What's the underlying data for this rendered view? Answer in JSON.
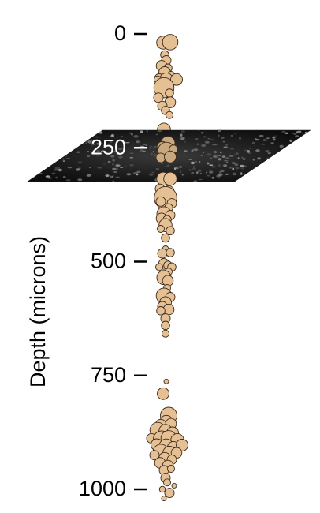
{
  "chart_data": {
    "type": "scatter",
    "title": "",
    "xlabel": "",
    "ylabel": "Depth (microns)",
    "y_axis": {
      "direction": "down",
      "ylim": [
        0,
        1000
      ],
      "ticks": [
        0,
        250,
        500,
        750,
        1000
      ],
      "tick_labels": [
        "0",
        "250",
        "500",
        "750",
        "1000"
      ]
    },
    "imaging_plane": {
      "depth": 250,
      "description": "two-photon imaging field, grayscale"
    },
    "marker": {
      "fill": "#e5c094",
      "edge": "#3a2a1a"
    },
    "points": [
      {
        "x": -0.15,
        "depth": 19,
        "size": 1.1
      },
      {
        "x": 0.3,
        "depth": 18,
        "size": 1.3
      },
      {
        "x": -0.05,
        "depth": 46,
        "size": 0.7
      },
      {
        "x": 0.05,
        "depth": 58,
        "size": 0.8
      },
      {
        "x": -0.25,
        "depth": 70,
        "size": 0.9
      },
      {
        "x": 0.15,
        "depth": 75,
        "size": 0.7
      },
      {
        "x": -0.05,
        "depth": 85,
        "size": 1.0
      },
      {
        "x": 0.35,
        "depth": 90,
        "size": 0.6
      },
      {
        "x": -0.4,
        "depth": 98,
        "size": 0.8
      },
      {
        "x": 0.05,
        "depth": 100,
        "size": 1.1
      },
      {
        "x": -0.5,
        "depth": 100,
        "size": 0.6
      },
      {
        "x": 0.7,
        "depth": 100,
        "size": 1.0
      },
      {
        "x": -0.1,
        "depth": 118,
        "size": 1.7
      },
      {
        "x": 0.25,
        "depth": 130,
        "size": 0.7
      },
      {
        "x": -0.45,
        "depth": 140,
        "size": 0.8
      },
      {
        "x": 0.3,
        "depth": 150,
        "size": 0.9
      },
      {
        "x": -0.2,
        "depth": 158,
        "size": 0.8
      },
      {
        "x": 0.0,
        "depth": 168,
        "size": 0.7
      },
      {
        "x": 0.25,
        "depth": 178,
        "size": 0.6
      },
      {
        "x": -0.1,
        "depth": 210,
        "size": 1.1
      },
      {
        "x": 0.05,
        "depth": 228,
        "size": 0.9
      },
      {
        "x": 0.15,
        "depth": 240,
        "size": 1.2
      },
      {
        "x": -0.2,
        "depth": 248,
        "size": 0.9
      },
      {
        "x": 0.05,
        "depth": 256,
        "size": 1.4
      },
      {
        "x": 0.5,
        "depth": 253,
        "size": 0.7
      },
      {
        "x": -0.3,
        "depth": 272,
        "size": 0.8
      },
      {
        "x": 0.3,
        "depth": 270,
        "size": 1.0
      },
      {
        "x": -0.15,
        "depth": 318,
        "size": 1.1
      },
      {
        "x": 0.3,
        "depth": 318,
        "size": 1.1
      },
      {
        "x": -0.35,
        "depth": 340,
        "size": 0.8
      },
      {
        "x": 0.2,
        "depth": 345,
        "size": 0.9
      },
      {
        "x": 0.0,
        "depth": 360,
        "size": 1.9
      },
      {
        "x": -0.3,
        "depth": 368,
        "size": 0.8
      },
      {
        "x": 0.4,
        "depth": 372,
        "size": 0.8
      },
      {
        "x": 0.2,
        "depth": 382,
        "size": 0.7
      },
      {
        "x": -0.1,
        "depth": 395,
        "size": 1.2
      },
      {
        "x": 0.3,
        "depth": 398,
        "size": 0.8
      },
      {
        "x": -0.25,
        "depth": 405,
        "size": 0.9
      },
      {
        "x": 0.1,
        "depth": 408,
        "size": 0.7
      },
      {
        "x": 0.0,
        "depth": 420,
        "size": 1.1
      },
      {
        "x": -0.3,
        "depth": 428,
        "size": 0.6
      },
      {
        "x": 0.3,
        "depth": 432,
        "size": 0.7
      },
      {
        "x": 0.0,
        "depth": 448,
        "size": 0.7
      },
      {
        "x": 0.0,
        "depth": 472,
        "size": 0.5
      },
      {
        "x": -0.2,
        "depth": 482,
        "size": 0.8
      },
      {
        "x": 0.3,
        "depth": 480,
        "size": 0.7
      },
      {
        "x": -0.1,
        "depth": 505,
        "size": 0.9
      },
      {
        "x": 0.15,
        "depth": 508,
        "size": 0.7
      },
      {
        "x": -0.4,
        "depth": 512,
        "size": 0.6
      },
      {
        "x": 0.4,
        "depth": 512,
        "size": 0.7
      },
      {
        "x": 0.2,
        "depth": 522,
        "size": 0.6
      },
      {
        "x": -0.1,
        "depth": 535,
        "size": 1.2
      },
      {
        "x": 0.15,
        "depth": 542,
        "size": 0.9
      },
      {
        "x": 0.1,
        "depth": 558,
        "size": 0.6
      },
      {
        "x": -0.1,
        "depth": 575,
        "size": 1.3
      },
      {
        "x": 0.3,
        "depth": 578,
        "size": 0.8
      },
      {
        "x": 0.0,
        "depth": 590,
        "size": 1.0
      },
      {
        "x": -0.2,
        "depth": 598,
        "size": 0.8
      },
      {
        "x": 0.2,
        "depth": 605,
        "size": 0.9
      },
      {
        "x": -0.3,
        "depth": 608,
        "size": 0.7
      },
      {
        "x": 0.0,
        "depth": 625,
        "size": 0.8
      },
      {
        "x": 0.0,
        "depth": 640,
        "size": 0.7
      },
      {
        "x": 0.0,
        "depth": 658,
        "size": 0.6
      },
      {
        "x": 0.05,
        "depth": 763,
        "size": 0.4
      },
      {
        "x": -0.15,
        "depth": 790,
        "size": 1.0
      },
      {
        "x": 0.2,
        "depth": 838,
        "size": 1.4
      },
      {
        "x": 0.05,
        "depth": 852,
        "size": 1.1
      },
      {
        "x": -0.3,
        "depth": 858,
        "size": 0.9
      },
      {
        "x": 0.35,
        "depth": 856,
        "size": 0.9
      },
      {
        "x": -0.5,
        "depth": 870,
        "size": 1.3
      },
      {
        "x": 0.0,
        "depth": 872,
        "size": 1.1
      },
      {
        "x": 0.45,
        "depth": 876,
        "size": 1.0
      },
      {
        "x": -0.9,
        "depth": 888,
        "size": 0.8
      },
      {
        "x": -0.25,
        "depth": 890,
        "size": 1.4
      },
      {
        "x": 0.2,
        "depth": 888,
        "size": 1.3
      },
      {
        "x": 0.75,
        "depth": 892,
        "size": 1.1
      },
      {
        "x": -0.55,
        "depth": 902,
        "size": 1.0
      },
      {
        "x": 0.05,
        "depth": 905,
        "size": 1.2
      },
      {
        "x": 0.5,
        "depth": 908,
        "size": 1.0
      },
      {
        "x": 1.05,
        "depth": 903,
        "size": 1.0
      },
      {
        "x": -0.3,
        "depth": 918,
        "size": 1.3
      },
      {
        "x": 0.25,
        "depth": 920,
        "size": 1.1
      },
      {
        "x": 0.7,
        "depth": 920,
        "size": 0.9
      },
      {
        "x": -0.7,
        "depth": 925,
        "size": 0.8
      },
      {
        "x": -0.05,
        "depth": 932,
        "size": 1.0
      },
      {
        "x": 0.4,
        "depth": 935,
        "size": 0.8
      },
      {
        "x": -0.35,
        "depth": 942,
        "size": 0.9
      },
      {
        "x": 0.15,
        "depth": 948,
        "size": 0.9
      },
      {
        "x": -0.1,
        "depth": 958,
        "size": 0.8
      },
      {
        "x": 0.35,
        "depth": 955,
        "size": 0.6
      },
      {
        "x": 0.0,
        "depth": 975,
        "size": 0.8
      },
      {
        "x": 0.1,
        "depth": 985,
        "size": 0.6
      },
      {
        "x": 0.55,
        "depth": 992,
        "size": 0.4
      },
      {
        "x": -0.2,
        "depth": 1000,
        "size": 0.5
      },
      {
        "x": 0.25,
        "depth": 1008,
        "size": 0.8
      },
      {
        "x": -0.1,
        "depth": 1020,
        "size": 0.4
      }
    ]
  }
}
